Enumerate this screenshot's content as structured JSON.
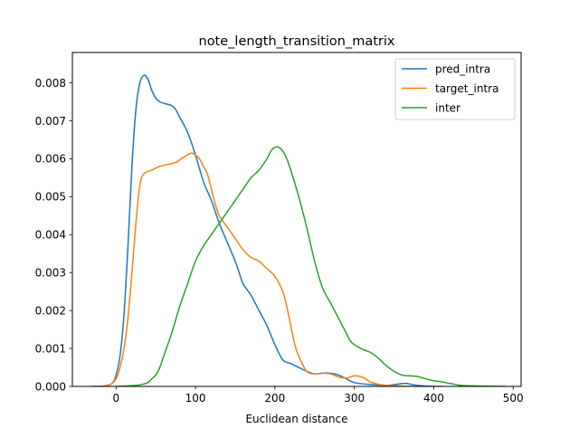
{
  "chart_data": {
    "type": "line",
    "title": "note_length_transition_matrix",
    "xlabel": "Euclidean distance",
    "ylabel": "",
    "xlim": [
      -55,
      510
    ],
    "ylim": [
      0,
      0.0088
    ],
    "x_ticks": [
      0,
      100,
      200,
      300,
      400,
      500
    ],
    "x_tick_labels": [
      "0",
      "100",
      "200",
      "300",
      "400",
      "500"
    ],
    "y_ticks": [
      0,
      0.001,
      0.002,
      0.003,
      0.004,
      0.005,
      0.006,
      0.007,
      0.008
    ],
    "y_tick_labels": [
      "0.000",
      "0.001",
      "0.002",
      "0.003",
      "0.004",
      "0.005",
      "0.006",
      "0.007",
      "0.008"
    ],
    "grid": false,
    "legend_position": "top-right",
    "series": [
      {
        "name": "pred_intra",
        "color": "#1f77b4",
        "points": [
          [
            -30,
            0
          ],
          [
            -15,
            1e-05
          ],
          [
            -5,
            8e-05
          ],
          [
            0,
            0.0003
          ],
          [
            5,
            0.0008
          ],
          [
            10,
            0.0019
          ],
          [
            15,
            0.0037
          ],
          [
            20,
            0.0058
          ],
          [
            25,
            0.0073
          ],
          [
            30,
            0.008
          ],
          [
            35,
            0.0082
          ],
          [
            40,
            0.0081
          ],
          [
            45,
            0.0078
          ],
          [
            50,
            0.0076
          ],
          [
            55,
            0.0075
          ],
          [
            62,
            0.00745
          ],
          [
            70,
            0.0074
          ],
          [
            75,
            0.0073
          ],
          [
            80,
            0.0071
          ],
          [
            90,
            0.0067
          ],
          [
            100,
            0.0061
          ],
          [
            110,
            0.0054
          ],
          [
            120,
            0.0049
          ],
          [
            130,
            0.0043
          ],
          [
            140,
            0.0038
          ],
          [
            150,
            0.0033
          ],
          [
            155,
            0.003
          ],
          [
            160,
            0.0027
          ],
          [
            170,
            0.0024
          ],
          [
            180,
            0.002
          ],
          [
            190,
            0.0016
          ],
          [
            200,
            0.0011
          ],
          [
            210,
            0.0007
          ],
          [
            220,
            0.0006
          ],
          [
            230,
            0.0005
          ],
          [
            240,
            0.0004
          ],
          [
            250,
            0.00033
          ],
          [
            260,
            0.00035
          ],
          [
            270,
            0.00035
          ],
          [
            280,
            0.0003
          ],
          [
            290,
            0.0002
          ],
          [
            300,
            0.0001
          ],
          [
            320,
            5e-05
          ],
          [
            340,
            3e-05
          ],
          [
            355,
            6e-05
          ],
          [
            365,
            8e-05
          ],
          [
            375,
            4e-05
          ],
          [
            390,
            1e-05
          ],
          [
            410,
            0
          ]
        ]
      },
      {
        "name": "target_intra",
        "color": "#ff7f0e",
        "points": [
          [
            -25,
            0
          ],
          [
            -10,
            2e-05
          ],
          [
            0,
            0.0002
          ],
          [
            5,
            0.0005
          ],
          [
            10,
            0.001
          ],
          [
            15,
            0.0018
          ],
          [
            20,
            0.003
          ],
          [
            25,
            0.0043
          ],
          [
            30,
            0.0053
          ],
          [
            35,
            0.0056
          ],
          [
            45,
            0.0057
          ],
          [
            55,
            0.0058
          ],
          [
            65,
            0.00585
          ],
          [
            75,
            0.0059
          ],
          [
            82,
            0.006
          ],
          [
            90,
            0.0061
          ],
          [
            95,
            0.00615
          ],
          [
            100,
            0.0061
          ],
          [
            105,
            0.006
          ],
          [
            110,
            0.0058
          ],
          [
            115,
            0.0056
          ],
          [
            120,
            0.0052
          ],
          [
            125,
            0.0048
          ],
          [
            130,
            0.0045
          ],
          [
            140,
            0.0042
          ],
          [
            150,
            0.0039
          ],
          [
            160,
            0.0036
          ],
          [
            170,
            0.0034
          ],
          [
            180,
            0.0033
          ],
          [
            190,
            0.0031
          ],
          [
            200,
            0.0029
          ],
          [
            210,
            0.0025
          ],
          [
            215,
            0.0021
          ],
          [
            220,
            0.0016
          ],
          [
            225,
            0.0011
          ],
          [
            230,
            0.0008
          ],
          [
            240,
            0.0004
          ],
          [
            250,
            0.00033
          ],
          [
            260,
            0.00035
          ],
          [
            270,
            0.00033
          ],
          [
            280,
            0.00025
          ],
          [
            290,
            0.00022
          ],
          [
            300,
            0.00028
          ],
          [
            310,
            0.00025
          ],
          [
            320,
            0.00012
          ],
          [
            330,
            6e-05
          ],
          [
            340,
            3e-05
          ],
          [
            360,
            1e-05
          ],
          [
            380,
            0
          ]
        ]
      },
      {
        "name": "inter",
        "color": "#2ca02c",
        "points": [
          [
            0,
            0
          ],
          [
            10,
            1e-05
          ],
          [
            20,
            2e-05
          ],
          [
            30,
            4e-05
          ],
          [
            40,
            0.0001
          ],
          [
            45,
            0.0002
          ],
          [
            50,
            0.0003
          ],
          [
            55,
            0.0005
          ],
          [
            60,
            0.0008
          ],
          [
            70,
            0.0014
          ],
          [
            80,
            0.0021
          ],
          [
            90,
            0.0027
          ],
          [
            100,
            0.0033
          ],
          [
            110,
            0.0037
          ],
          [
            120,
            0.004
          ],
          [
            130,
            0.0043
          ],
          [
            140,
            0.0046
          ],
          [
            150,
            0.0049
          ],
          [
            160,
            0.0052
          ],
          [
            170,
            0.0055
          ],
          [
            180,
            0.0057
          ],
          [
            190,
            0.006
          ],
          [
            195,
            0.0062
          ],
          [
            200,
            0.0063
          ],
          [
            205,
            0.0063
          ],
          [
            210,
            0.0062
          ],
          [
            215,
            0.006
          ],
          [
            220,
            0.0057
          ],
          [
            230,
            0.005
          ],
          [
            240,
            0.0042
          ],
          [
            250,
            0.0033
          ],
          [
            260,
            0.0026
          ],
          [
            270,
            0.0022
          ],
          [
            280,
            0.0018
          ],
          [
            290,
            0.0014
          ],
          [
            295,
            0.0012
          ],
          [
            300,
            0.0011
          ],
          [
            310,
            0.00098
          ],
          [
            320,
            0.0009
          ],
          [
            330,
            0.00075
          ],
          [
            340,
            0.00055
          ],
          [
            350,
            0.0004
          ],
          [
            360,
            0.0003
          ],
          [
            370,
            0.00028
          ],
          [
            380,
            0.00026
          ],
          [
            390,
            0.0002
          ],
          [
            400,
            0.00015
          ],
          [
            410,
            0.00012
          ],
          [
            420,
            8e-05
          ],
          [
            430,
            4e-05
          ],
          [
            440,
            2e-05
          ],
          [
            460,
            1e-05
          ],
          [
            490,
            0
          ]
        ]
      }
    ]
  }
}
